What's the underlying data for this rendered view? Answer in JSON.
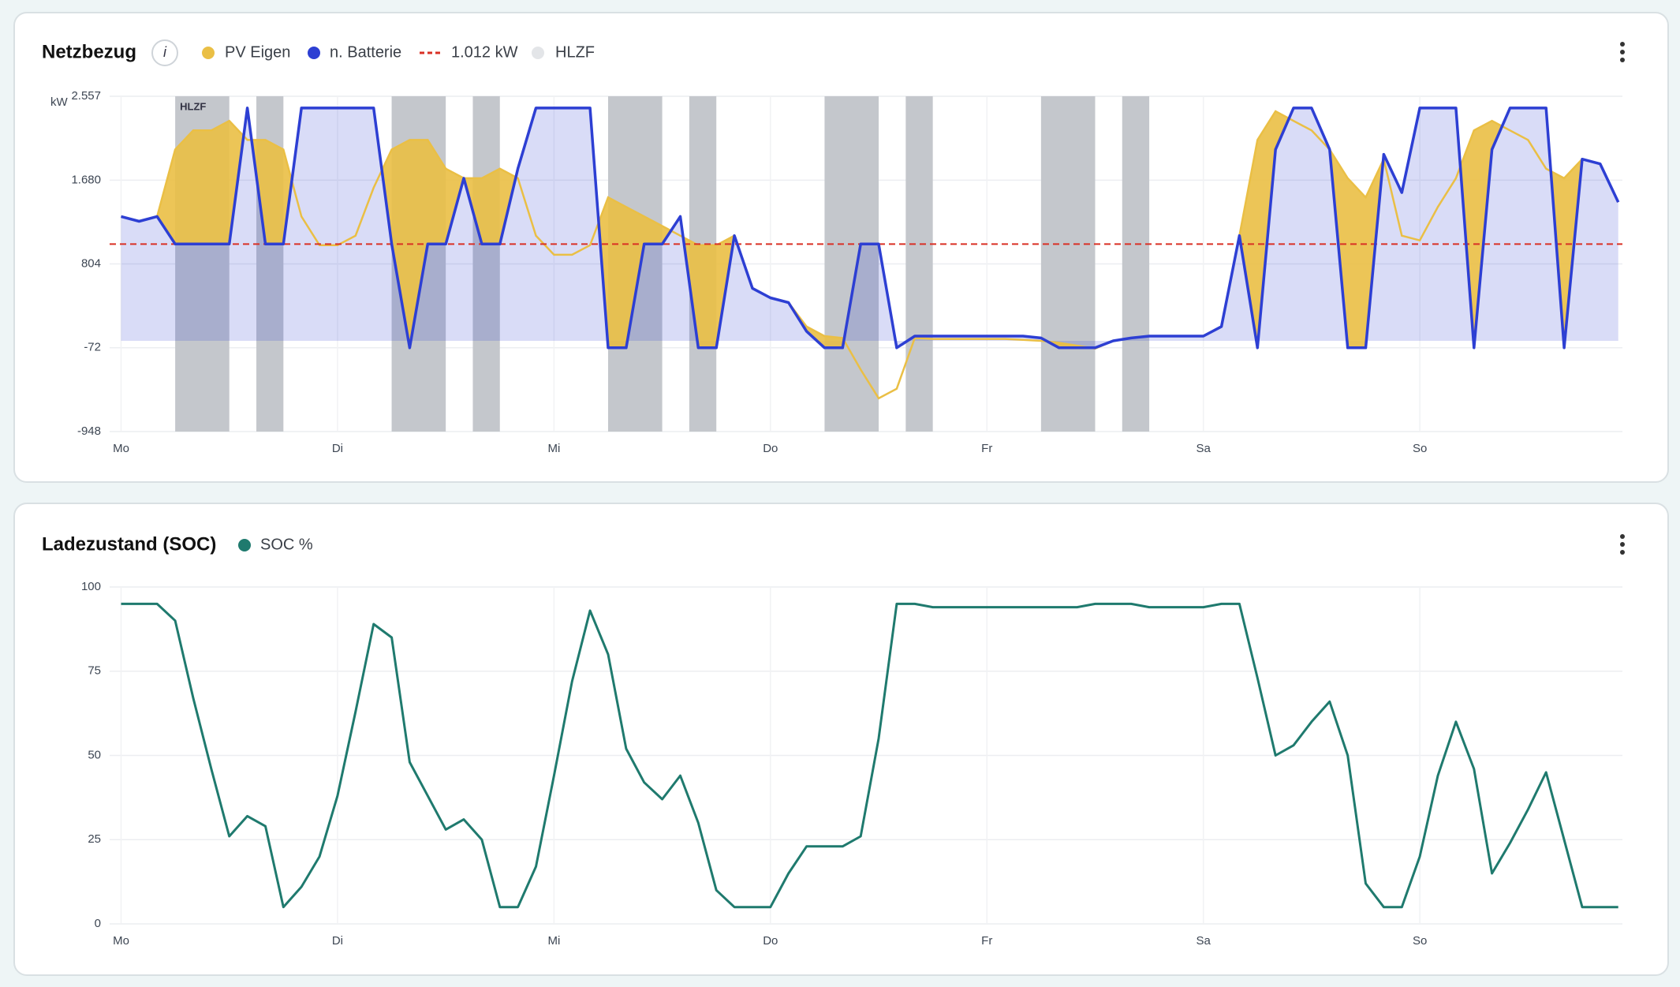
{
  "chart_data": [
    {
      "type": "area",
      "title": "Netzbezug",
      "info": "i",
      "y_unit": "kW",
      "categories": [
        "Mo",
        null,
        null,
        null,
        null,
        null,
        null,
        null,
        null,
        null,
        null,
        null,
        "Di",
        null,
        null,
        null,
        null,
        null,
        null,
        null,
        null,
        null,
        null,
        null,
        "Mi",
        null,
        null,
        null,
        null,
        null,
        null,
        null,
        null,
        null,
        null,
        null,
        "Do",
        null,
        null,
        null,
        null,
        null,
        null,
        null,
        null,
        null,
        null,
        null,
        "Fr",
        null,
        null,
        null,
        null,
        null,
        null,
        null,
        null,
        null,
        null,
        null,
        "Sa",
        null,
        null,
        null,
        null,
        null,
        null,
        null,
        null,
        null,
        null,
        null,
        "So",
        null,
        null,
        null,
        null,
        null,
        null,
        null,
        null,
        null,
        null,
        null
      ],
      "series": [
        {
          "name": "PV Eigen",
          "color": "#eabf45",
          "values": [
            1300,
            1250,
            1300,
            2000,
            2200,
            2200,
            2300,
            2100,
            2100,
            2000,
            1300,
            1000,
            1000,
            1100,
            1600,
            2000,
            2100,
            2100,
            1800,
            1700,
            1700,
            1800,
            1700,
            1100,
            900,
            900,
            1000,
            1500,
            1400,
            1300,
            1200,
            1100,
            1000,
            1000,
            1100,
            550,
            450,
            400,
            150,
            50,
            30,
            -300,
            -600,
            -500,
            30,
            20,
            20,
            20,
            20,
            20,
            10,
            0,
            -20,
            -50,
            -80,
            0,
            30,
            50,
            50,
            50,
            50,
            150,
            1100,
            2100,
            2400,
            2300,
            2200,
            2000,
            1700,
            1500,
            1900,
            1100,
            1050,
            1400,
            1700,
            2200,
            2300,
            2200,
            2100,
            1800,
            1700,
            1900,
            1850,
            1450
          ]
        },
        {
          "name": "n. Batterie",
          "color": "#2d3fd3",
          "values": [
            1300,
            1250,
            1300,
            1012,
            1012,
            1012,
            1012,
            2434,
            1012,
            1012,
            2434,
            2434,
            2434,
            2434,
            2434,
            1012,
            -72,
            1012,
            1012,
            1700,
            1012,
            1012,
            1800,
            2434,
            2434,
            2434,
            2434,
            -72,
            -72,
            1012,
            1012,
            1300,
            -72,
            -72,
            1100,
            550,
            450,
            400,
            100,
            -72,
            -72,
            1012,
            1012,
            -72,
            50,
            50,
            50,
            50,
            50,
            50,
            50,
            30,
            -72,
            -72,
            -72,
            0,
            30,
            50,
            50,
            50,
            50,
            150,
            1100,
            -72,
            2000,
            2434,
            2434,
            2000,
            -72,
            -72,
            1950,
            1550,
            2434,
            2434,
            2434,
            -72,
            2000,
            2434,
            2434,
            2434,
            -72,
            1900,
            1850,
            1450
          ]
        }
      ],
      "threshold": {
        "value": 1012,
        "label": "1.012 kW",
        "color": "#d93025"
      },
      "bands_name": "HLZF",
      "band_label": "HLZF",
      "band_color": "#c4c7cc",
      "hlzf_bands": [
        [
          3,
          6
        ],
        [
          7.5,
          9
        ],
        [
          15,
          18
        ],
        [
          19.5,
          21
        ],
        [
          27,
          30
        ],
        [
          31.5,
          33
        ],
        [
          39,
          42
        ],
        [
          43.5,
          45
        ],
        [
          51,
          54
        ],
        [
          55.5,
          57
        ]
      ],
      "ylim": [
        -948,
        2557
      ],
      "yticks": [
        -948,
        -72,
        804,
        {
          "value": 1680,
          "label": "1.680"
        },
        {
          "value": 2557,
          "label": "2.557"
        }
      ],
      "grid": true
    },
    {
      "type": "line",
      "title": "Ladezustand (SOC)",
      "categories": [
        "Mo",
        null,
        null,
        null,
        null,
        null,
        null,
        null,
        null,
        null,
        null,
        null,
        "Di",
        null,
        null,
        null,
        null,
        null,
        null,
        null,
        null,
        null,
        null,
        null,
        "Mi",
        null,
        null,
        null,
        null,
        null,
        null,
        null,
        null,
        null,
        null,
        null,
        "Do",
        null,
        null,
        null,
        null,
        null,
        null,
        null,
        null,
        null,
        null,
        null,
        "Fr",
        null,
        null,
        null,
        null,
        null,
        null,
        null,
        null,
        null,
        null,
        null,
        "Sa",
        null,
        null,
        null,
        null,
        null,
        null,
        null,
        null,
        null,
        null,
        null,
        "So",
        null,
        null,
        null,
        null,
        null,
        null,
        null,
        null,
        null,
        null,
        null
      ],
      "series": [
        {
          "name": "SOC %",
          "color": "#1f7a6e",
          "values": [
            95,
            95,
            95,
            90,
            67,
            46,
            26,
            32,
            29,
            5,
            11,
            20,
            38,
            63,
            89,
            85,
            48,
            38,
            28,
            31,
            25,
            5,
            5,
            17,
            44,
            72,
            93,
            80,
            52,
            42,
            37,
            44,
            30,
            10,
            5,
            5,
            5,
            15,
            23,
            23,
            23,
            26,
            55,
            95,
            95,
            94,
            94,
            94,
            94,
            94,
            94,
            94,
            94,
            94,
            95,
            95,
            95,
            94,
            94,
            94,
            94,
            95,
            95,
            73,
            50,
            53,
            60,
            66,
            50,
            12,
            5,
            5,
            20,
            44,
            60,
            46,
            15,
            24,
            34,
            45,
            25,
            5,
            5,
            5
          ]
        }
      ],
      "ylim": [
        0,
        100
      ],
      "yticks": [
        0,
        25,
        50,
        75,
        100
      ],
      "grid": true
    }
  ]
}
